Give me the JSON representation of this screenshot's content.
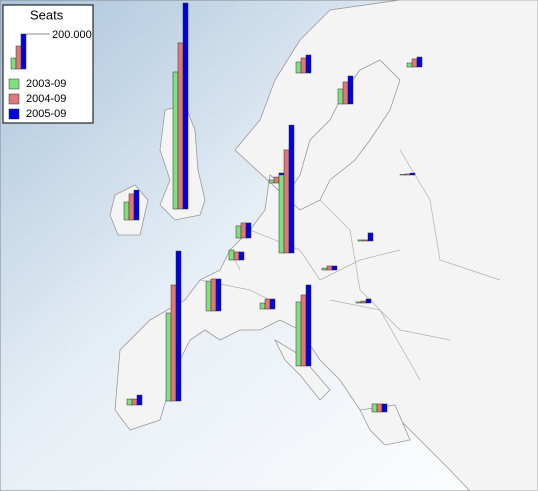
{
  "chart_data": {
    "type": "map-bars",
    "title": "Seats",
    "scale": {
      "value": 200000,
      "label": "200.000"
    },
    "series": [
      {
        "name": "2003-09",
        "color": "#80e080",
        "values": [
          63000,
          86000,
          23000,
          103000,
          783000,
          17000,
          446000,
          69000,
          57000,
          171000,
          503000,
          34000,
          34000,
          366000,
          11000,
          6000,
          6000,
          3000,
          46000
        ]
      },
      {
        "name": "2004-09",
        "color": "#e07878",
        "values": [
          86000,
          126000,
          46000,
          149000,
          949000,
          34000,
          589000,
          86000,
          46000,
          183000,
          663000,
          34000,
          57000,
          406000,
          23000,
          6000,
          11000,
          6000,
          46000
        ]
      },
      {
        "name": "2005-09",
        "color": "#0000e0",
        "values": [
          103000,
          160000,
          57000,
          171000,
          1177000,
          57000,
          731000,
          86000,
          46000,
          183000,
          857000,
          57000,
          57000,
          463000,
          23000,
          46000,
          23000,
          11000,
          46000
        ]
      }
    ]
  }
}
